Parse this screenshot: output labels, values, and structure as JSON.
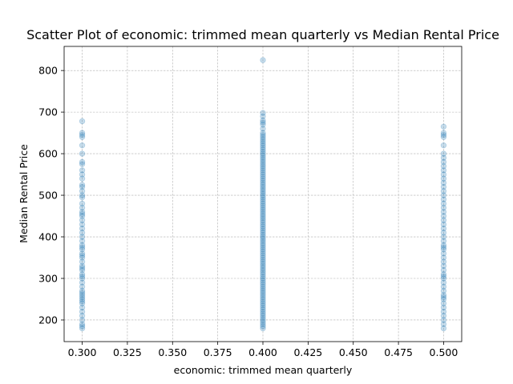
{
  "chart_data": {
    "type": "scatter",
    "title": "Scatter Plot of economic: trimmed mean quarterly vs Median Rental Price",
    "xlabel": "economic: trimmed mean quarterly",
    "ylabel": "Median Rental Price",
    "xlim": [
      0.29,
      0.51
    ],
    "ylim": [
      148,
      858
    ],
    "xticks": [
      0.3,
      0.325,
      0.35,
      0.375,
      0.4,
      0.425,
      0.45,
      0.475,
      0.5
    ],
    "xtick_labels": [
      "0.300",
      "0.325",
      "0.350",
      "0.375",
      "0.400",
      "0.425",
      "0.450",
      "0.475",
      "0.500"
    ],
    "yticks": [
      200,
      300,
      400,
      500,
      600,
      700,
      800
    ],
    "ytick_labels": [
      "200",
      "300",
      "400",
      "500",
      "600",
      "700",
      "800"
    ],
    "grid": true,
    "marker_color": "#1f77b4",
    "marker_alpha": 0.25,
    "series": [
      {
        "x_value": 0.3,
        "y": [
          180,
          185,
          190,
          200,
          210,
          220,
          230,
          240,
          245,
          250,
          255,
          260,
          265,
          270,
          280,
          290,
          300,
          305,
          310,
          320,
          325,
          330,
          340,
          350,
          355,
          360,
          370,
          375,
          380,
          390,
          400,
          410,
          420,
          430,
          440,
          450,
          455,
          460,
          470,
          480,
          495,
          500,
          510,
          520,
          525,
          540,
          550,
          560,
          575,
          580,
          600,
          620,
          640,
          645,
          650,
          678
        ]
      },
      {
        "x_value": 0.4,
        "y": [
          180,
          185,
          190,
          195,
          200,
          205,
          210,
          215,
          220,
          225,
          230,
          235,
          240,
          245,
          250,
          255,
          260,
          265,
          270,
          275,
          280,
          285,
          290,
          295,
          300,
          305,
          310,
          315,
          320,
          325,
          330,
          335,
          340,
          345,
          350,
          355,
          360,
          365,
          370,
          375,
          380,
          385,
          390,
          395,
          400,
          405,
          410,
          415,
          420,
          425,
          430,
          435,
          440,
          445,
          450,
          455,
          460,
          465,
          470,
          475,
          480,
          485,
          490,
          495,
          500,
          505,
          510,
          515,
          520,
          525,
          530,
          535,
          540,
          545,
          550,
          555,
          560,
          565,
          570,
          575,
          580,
          585,
          590,
          595,
          600,
          605,
          610,
          615,
          620,
          625,
          630,
          635,
          640,
          645,
          650,
          660,
          670,
          675,
          680,
          690,
          698,
          825
        ]
      },
      {
        "x_value": 0.5,
        "y": [
          180,
          190,
          200,
          210,
          220,
          230,
          240,
          250,
          255,
          260,
          270,
          280,
          290,
          300,
          305,
          310,
          320,
          330,
          340,
          350,
          360,
          370,
          375,
          380,
          390,
          400,
          410,
          420,
          430,
          440,
          450,
          460,
          470,
          480,
          490,
          500,
          510,
          520,
          530,
          540,
          550,
          560,
          570,
          580,
          590,
          600,
          620,
          640,
          645,
          650,
          665
        ]
      }
    ]
  }
}
